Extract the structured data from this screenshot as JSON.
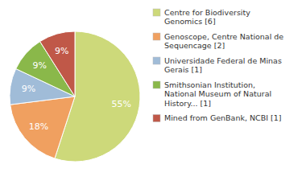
{
  "chart_data": {
    "type": "pie",
    "categories": [
      "Centre for Biodiversity\nGenomics [6]",
      "Genoscope, Centre National de\nSequencage [2]",
      "Universidade Federal de Minas\nGerais [1]",
      "Smithsonian Institution,\nNational Museum of Natural\nHistory... [1]",
      "Mined from GenBank, NCBI [1]"
    ],
    "values": [
      55,
      18,
      9,
      9,
      9
    ],
    "value_labels": [
      "55%",
      "18%",
      "9%",
      "9%",
      "9%"
    ],
    "data_labels": true,
    "colors": [
      "#cdd97a",
      "#f0a060",
      "#a0bcd8",
      "#8ab84a",
      "#c05848"
    ],
    "legend": "right"
  }
}
